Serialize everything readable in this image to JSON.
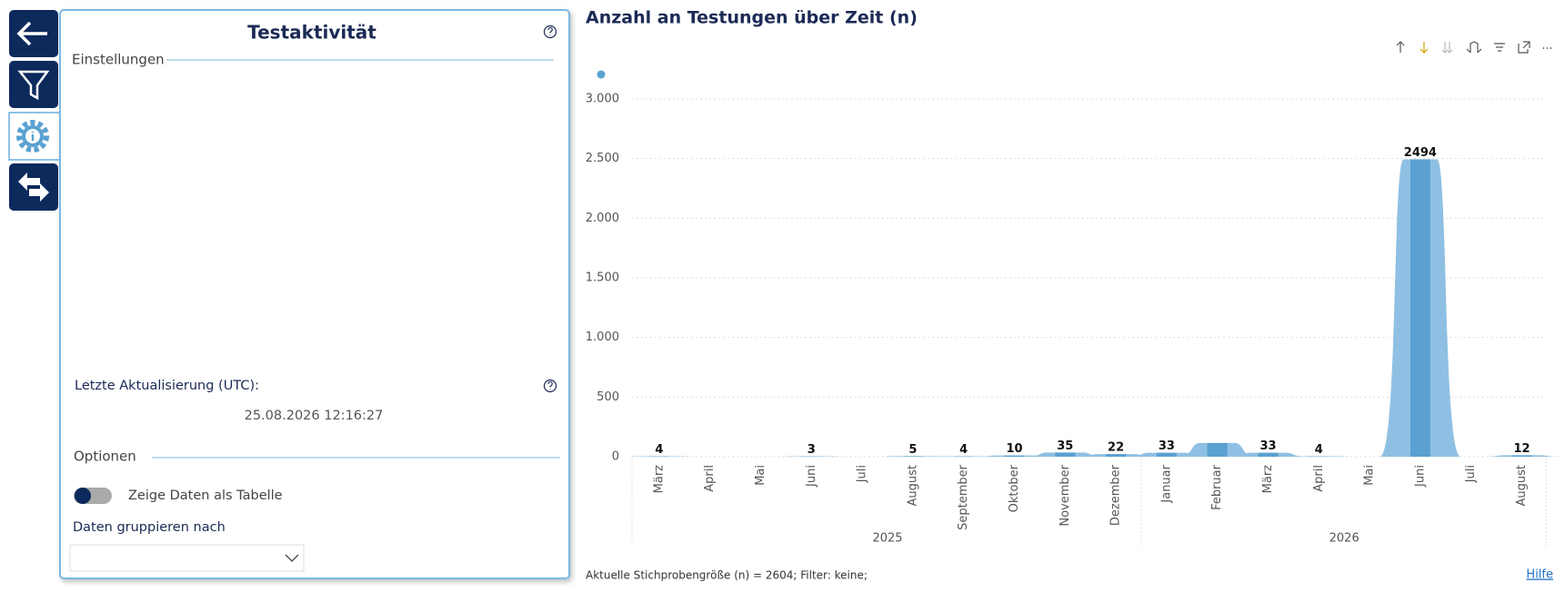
{
  "panel": {
    "title": "Testaktivität",
    "settings_heading": "Einstellungen",
    "last_update_label": "Letzte Aktualisierung (UTC):",
    "last_update_value": "25.08.2026 12:16:27",
    "options_heading": "Optionen",
    "toggle_label": "Zeige Daten als Tabelle",
    "group_by_label": "Daten gruppieren nach"
  },
  "chart_data": {
    "type": "ribbon",
    "title": "Anzahl an Testungen über Zeit (n)",
    "color": "#8fc0e3",
    "bar_color": "#5aa1d2",
    "groups": [
      {
        "label": "2025",
        "categories": [
          "März",
          "April",
          "Mai",
          "Juni",
          "Juli",
          "August",
          "September",
          "Oktober",
          "November",
          "Dezember"
        ],
        "values": [
          4,
          null,
          null,
          3,
          null,
          5,
          4,
          10,
          35,
          22
        ]
      },
      {
        "label": "2026",
        "categories": [
          "Januar",
          "Februar",
          "März",
          "April",
          "Mai",
          "Juni",
          "Juli",
          "August"
        ],
        "values": [
          33,
          115,
          33,
          4,
          null,
          2494,
          null,
          12
        ],
        "value_labels": [
          "33",
          null,
          "33",
          "4",
          null,
          "2494",
          null,
          "12"
        ]
      }
    ],
    "ylim": [
      0,
      3000
    ],
    "yticks": [
      0,
      500,
      {
        "value": 1000,
        "label": "1.000"
      },
      {
        "value": 1500,
        "label": "1.500"
      },
      {
        "value": 2000,
        "label": "2.000"
      },
      {
        "value": 2500,
        "label": "2.500"
      },
      {
        "value": 3000,
        "label": "3.000"
      }
    ],
    "grid": true
  },
  "footer": {
    "sample_info": "Aktuelle Stichprobengröße (n) = 2604; Filter: keine;",
    "help_link": "Hilfe"
  }
}
